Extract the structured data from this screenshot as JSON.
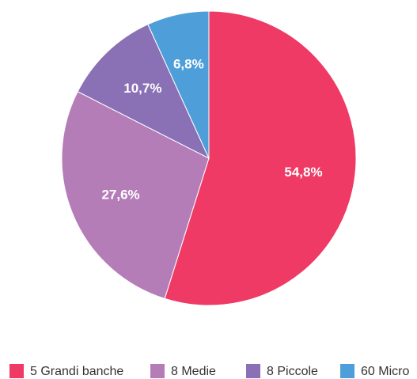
{
  "chart_data": {
    "type": "pie",
    "categories": [
      "5 Grandi banche",
      "8 Medie",
      "8 Piccole",
      "60 Micro"
    ],
    "values": [
      54.8,
      27.6,
      10.7,
      6.8
    ],
    "value_labels": [
      "54,8%",
      "27,6%",
      "10,7%",
      "6,8%"
    ],
    "colors": [
      "#ee3a65",
      "#b57db8",
      "#8a70b4",
      "#4e9fd9"
    ],
    "legend": "bottom"
  }
}
